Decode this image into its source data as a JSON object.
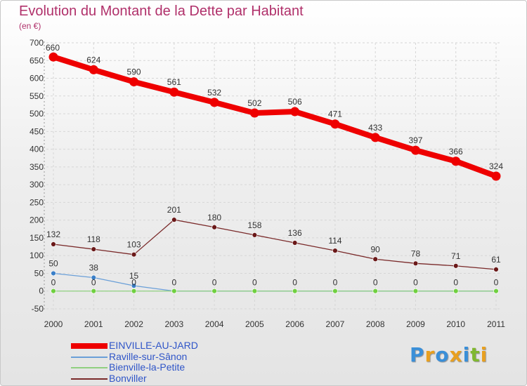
{
  "title": "Evolution du Montant de la Dette par Habitant",
  "subtitle": "(en €)",
  "logo": {
    "text": "Proxiti",
    "colors": [
      "#3a8fd8",
      "#e8a020",
      "#3a8fd8",
      "#e8a020",
      "#3a8fd8",
      "#80b830",
      "#e8a020"
    ]
  },
  "chart_data": {
    "type": "line",
    "title": "Evolution du Montant de la Dette par Habitant",
    "ylabel": "(en €)",
    "xlabel": "",
    "categories": [
      "2000",
      "2001",
      "2002",
      "2003",
      "2004",
      "2005",
      "2006",
      "2007",
      "2008",
      "2009",
      "2010",
      "2011"
    ],
    "ylim": [
      -50,
      700
    ],
    "yticks": [
      -50,
      0,
      50,
      100,
      150,
      200,
      250,
      300,
      350,
      400,
      450,
      500,
      550,
      600,
      650,
      700
    ],
    "legend_position": "bottom-left",
    "series": [
      {
        "name": "EINVILLE-AU-JARD",
        "color": "#ee0000",
        "marker_color": "#ee0000",
        "values": [
          660,
          624,
          590,
          561,
          532,
          502,
          506,
          471,
          433,
          397,
          366,
          324
        ],
        "labels": [
          "660",
          "624",
          "590",
          "561",
          "532",
          "502",
          "506",
          "471",
          "433",
          "397",
          "366",
          "324"
        ]
      },
      {
        "name": "Raville-sur-Sânon",
        "color": "#6a9fd8",
        "marker_color": "#3a7fc8",
        "values": [
          50,
          38,
          15,
          0,
          0,
          0,
          0,
          0,
          0,
          0,
          0,
          0
        ],
        "labels": [
          "50",
          "38",
          "15",
          "0",
          "0",
          "0",
          "0",
          "0",
          "0",
          "0",
          "0",
          "0"
        ]
      },
      {
        "name": "Bienville-la-Petite",
        "color": "#90d080",
        "marker_color": "#70d040",
        "values": [
          0,
          0,
          0,
          0,
          0,
          0,
          0,
          0,
          0,
          0,
          0,
          0
        ],
        "labels": [
          "0",
          "0",
          "0",
          "",
          "",
          "",
          "",
          "",
          "",
          "",
          "",
          ""
        ]
      },
      {
        "name": "Bonviller",
        "color": "#7a2a2a",
        "marker_color": "#6a1818",
        "values": [
          132,
          118,
          103,
          201,
          180,
          158,
          136,
          114,
          90,
          78,
          71,
          61
        ],
        "labels": [
          "132",
          "118",
          "103",
          "201",
          "180",
          "158",
          "136",
          "114",
          "90",
          "78",
          "71",
          "61"
        ]
      }
    ]
  }
}
